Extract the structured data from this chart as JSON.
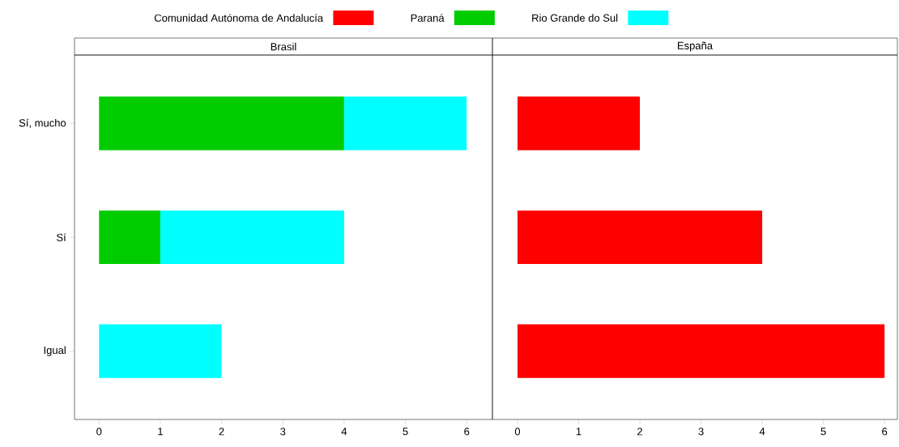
{
  "chart_data": [
    {
      "type": "bar",
      "orientation": "horizontal",
      "stacked": true,
      "title": "Brasil",
      "categories": [
        "Sí, mucho",
        "Sí",
        "Igual"
      ],
      "xlim": [
        -0.4,
        6.42
      ],
      "xticks": [
        0,
        1,
        2,
        3,
        4,
        5,
        6
      ],
      "legend": "top",
      "series": [
        {
          "name": "Paraná",
          "color": "#00cc00",
          "values": [
            4,
            1,
            null
          ]
        },
        {
          "name": "Rio Grande do Sul",
          "color": "#00ffff",
          "values": [
            2,
            3,
            2
          ]
        }
      ]
    },
    {
      "type": "bar",
      "orientation": "horizontal",
      "stacked": true,
      "title": "España",
      "categories": [
        null,
        null,
        null
      ],
      "xlim": [
        -0.41,
        6.21
      ],
      "xticks": [
        0,
        1,
        2,
        3,
        4,
        5,
        6
      ],
      "tick_labels": "x",
      "legend": "top",
      "series": [
        {
          "name": "Comunidad Autónoma de Andalucía",
          "color": "#ff0000",
          "values": [
            2,
            4,
            6
          ]
        }
      ]
    }
  ]
}
